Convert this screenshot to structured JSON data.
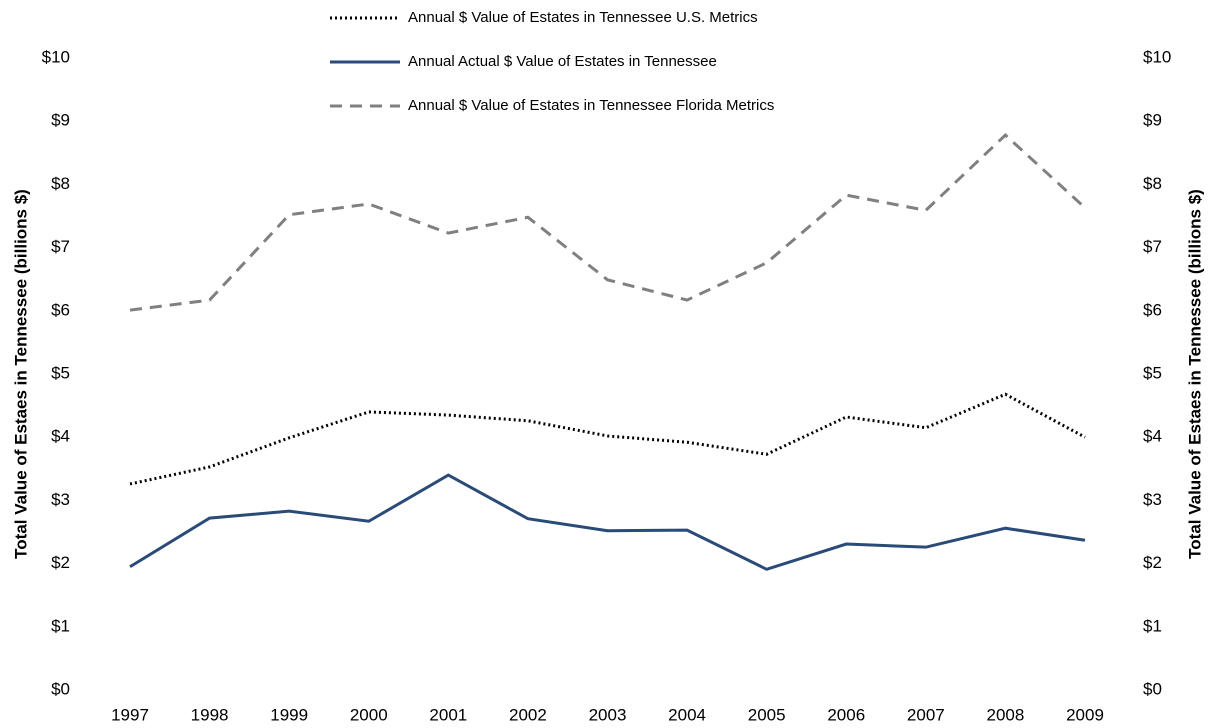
{
  "chart_data": {
    "type": "line",
    "y_label": "Total Value of Estaes in Tennessee (billions $)",
    "y2_label": "Total Value of Estaes in Tennessee (billions $)",
    "categories": [
      "1997",
      "1998",
      "1999",
      "2000",
      "2001",
      "2002",
      "2003",
      "2004",
      "2005",
      "2006",
      "2007",
      "2008",
      "2009"
    ],
    "series": [
      {
        "name": "Annual $ Value of Estates in Tennessee U.S. Metrics",
        "color": "#000000",
        "style": "dotted",
        "values": [
          3.26,
          3.53,
          3.99,
          4.4,
          4.35,
          4.26,
          4.02,
          3.92,
          3.73,
          4.32,
          4.15,
          4.68,
          4.0
        ]
      },
      {
        "name": "Annual Actual $ Value of Estates in Tennessee",
        "color": "#2a4a78",
        "style": "solid",
        "values": [
          1.95,
          2.72,
          2.83,
          2.67,
          3.4,
          2.71,
          2.52,
          2.53,
          1.91,
          2.31,
          2.26,
          2.56,
          2.37
        ]
      },
      {
        "name": "Annual $ Value of Estates in Tennessee Florida Metrics",
        "color": "#808080",
        "style": "dashed",
        "values": [
          6.01,
          6.17,
          7.52,
          7.69,
          7.23,
          7.48,
          6.49,
          6.17,
          6.76,
          7.83,
          7.59,
          8.78,
          7.63
        ]
      }
    ],
    "ylim": [
      0,
      10
    ],
    "yticks": [
      {
        "value": 0,
        "label": "$0"
      },
      {
        "value": 1,
        "label": "$1"
      },
      {
        "value": 2,
        "label": "$2"
      },
      {
        "value": 3,
        "label": "$3"
      },
      {
        "value": 4,
        "label": "$4"
      },
      {
        "value": 5,
        "label": "$5"
      },
      {
        "value": 6,
        "label": "$6"
      },
      {
        "value": 7,
        "label": "$7"
      },
      {
        "value": 8,
        "label": "$8"
      },
      {
        "value": 9,
        "label": "$9"
      },
      {
        "value": 10,
        "label": "$10"
      }
    ],
    "y2lim": [
      0,
      10
    ],
    "y2ticks": [
      {
        "value": 0,
        "label": "$0"
      },
      {
        "value": 1,
        "label": "$1"
      },
      {
        "value": 2,
        "label": "$2"
      },
      {
        "value": 3,
        "label": "$3"
      },
      {
        "value": 4,
        "label": "$4"
      },
      {
        "value": 5,
        "label": "$5"
      },
      {
        "value": 6,
        "label": "$6"
      },
      {
        "value": 7,
        "label": "$7"
      },
      {
        "value": 8,
        "label": "$8"
      },
      {
        "value": 9,
        "label": "$9"
      },
      {
        "value": 10,
        "label": "$10"
      }
    ],
    "grid": false
  }
}
